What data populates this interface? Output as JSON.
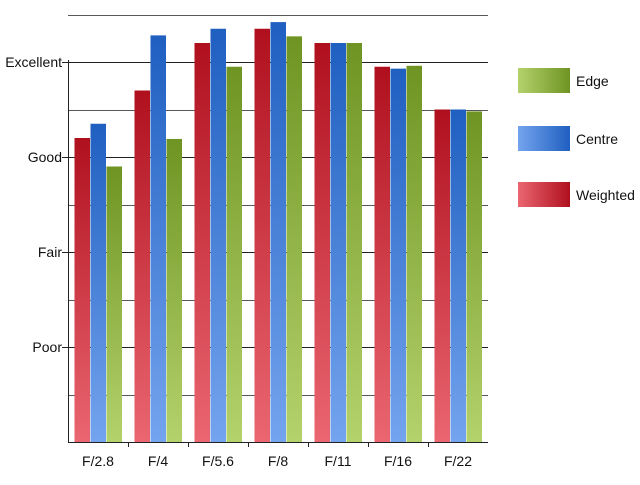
{
  "chart_data": {
    "type": "bar",
    "title": "",
    "xlabel": "",
    "ylabel": "",
    "categories": [
      "F/2.8",
      "F/4",
      "F/5.6",
      "F/8",
      "F/11",
      "F/16",
      "F/22"
    ],
    "y_ticks": [
      {
        "label": "Poor",
        "value": 1
      },
      {
        "label": "Fair",
        "value": 2
      },
      {
        "label": "Good",
        "value": 3
      },
      {
        "label": "Excellent",
        "value": 4
      }
    ],
    "ylim": [
      0,
      4
    ],
    "grid": true,
    "legend_position": "right",
    "series": [
      {
        "name": "Weighted",
        "color_dark": "#b0101e",
        "color_light": "#ea6670",
        "values": [
          3.2,
          3.7,
          4.2,
          4.35,
          4.2,
          3.95,
          3.5
        ]
      },
      {
        "name": "Centre",
        "color_dark": "#1f5fc0",
        "color_light": "#74a4ee",
        "values": [
          3.35,
          4.28,
          4.35,
          4.42,
          4.2,
          3.93,
          3.5
        ]
      },
      {
        "name": "Edge",
        "color_dark": "#6f9423",
        "color_light": "#b4d26c",
        "values": [
          2.9,
          3.19,
          3.95,
          4.27,
          4.2,
          3.96,
          3.48
        ]
      }
    ],
    "legend_order": [
      "Edge",
      "Centre",
      "Weighted"
    ]
  }
}
